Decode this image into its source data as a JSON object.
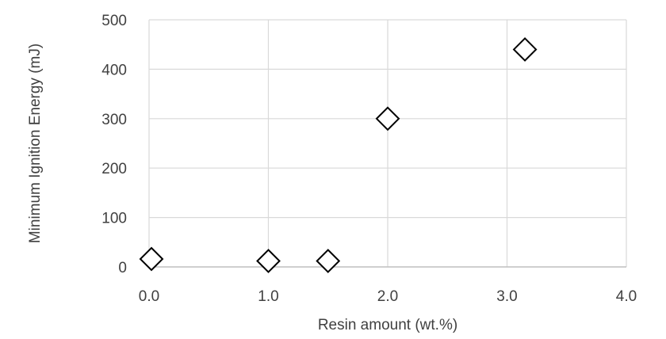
{
  "chart_data": {
    "type": "scatter",
    "title": "",
    "xlabel": "Resin amount (wt.%)",
    "ylabel": "Minimum Ignition Energy (mJ)",
    "xlim": [
      0,
      4
    ],
    "ylim": [
      0,
      500
    ],
    "x_ticks": [
      0,
      1,
      2,
      3,
      4
    ],
    "x_tick_labels": [
      "0.0",
      "1.0",
      "2.0",
      "3.0",
      "4.0"
    ],
    "y_ticks": [
      0,
      100,
      200,
      300,
      400,
      500
    ],
    "y_tick_labels": [
      "0",
      "100",
      "200",
      "300",
      "400",
      "500"
    ],
    "grid": true,
    "legend": "none",
    "marker": "diamond-open",
    "marker_color": "#000000",
    "series": [
      {
        "x": [
          0.02,
          1.0,
          1.5,
          2.0,
          3.15
        ],
        "y": [
          16,
          12,
          12,
          300,
          440
        ]
      }
    ]
  }
}
